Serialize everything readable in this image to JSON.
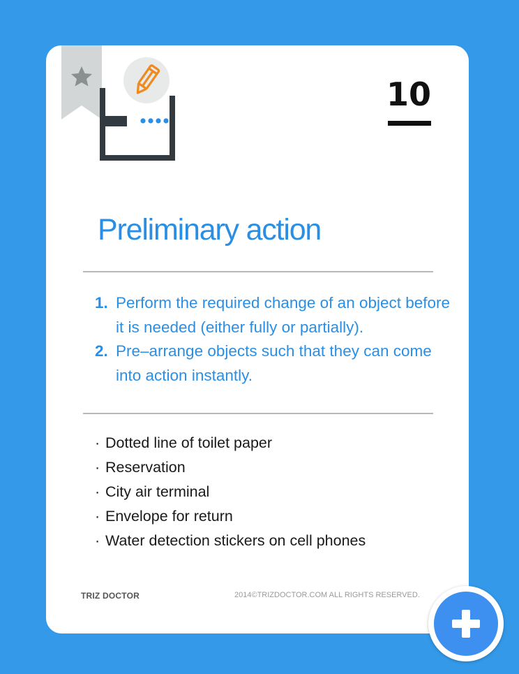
{
  "card": {
    "number": "10",
    "title": "Preliminary action",
    "principles": [
      {
        "num": "1.",
        "text": "Perform the required change of an object before it is needed (either fully or partially)."
      },
      {
        "num": "2.",
        "text": "Pre–arrange objects such that they can come into action instantly."
      }
    ],
    "examples": [
      {
        "bullet": "·",
        "text": "Dotted line of toilet paper"
      },
      {
        "bullet": "·",
        "text": "Reservation"
      },
      {
        "bullet": "·",
        "text": "City air terminal"
      },
      {
        "bullet": "·",
        "text": "Envelope for return"
      },
      {
        "bullet": "·",
        "text": "Water detection stickers on cell phones"
      }
    ],
    "footer": {
      "brand": "TRIZ DOCTOR",
      "copyright": "2014©TRIZDOCTOR.COM  ALL RIGHTS RESERVED."
    }
  },
  "icons": {
    "bookmark": "star-bookmark-icon",
    "illustration": "toilet-paper-dotted-line-icon",
    "badge": "pencil-icon",
    "fab": "plus-icon"
  },
  "colors": {
    "background": "#3399e8",
    "accent": "#2a8fe4",
    "pencil": "#ef8a1e",
    "fab": "#3d8ff0"
  }
}
